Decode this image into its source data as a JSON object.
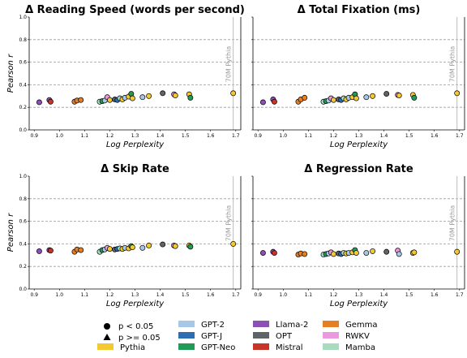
{
  "chart_data": {
    "type": "scatter",
    "xlabel": "Log Perplexity",
    "ylabel": "Pearson r",
    "xlim": [
      0.88,
      1.72
    ],
    "ylim": [
      0.0,
      1.0
    ],
    "xticks": [
      "0.9",
      "1.0",
      "1.1",
      "1.2",
      "1.3",
      "1.4",
      "1.5",
      "1.6",
      "1.7"
    ],
    "yticks": [
      "0.0",
      "0.2",
      "0.4",
      "0.6",
      "0.8",
      "1.0"
    ],
    "xtick_values": [
      0.9,
      1.0,
      1.1,
      1.2,
      1.3,
      1.4,
      1.5,
      1.6,
      1.7
    ],
    "ytick_values": [
      0.0,
      0.2,
      0.4,
      0.6,
      0.8,
      1.0
    ],
    "grid_y": true,
    "reference_line": {
      "x": 1.69,
      "label": "70M Pythia"
    },
    "legend": {
      "placement": "bottom",
      "markers": [
        {
          "shape": "circle",
          "label": "p < 0.05"
        },
        {
          "shape": "triangle",
          "label": "p >= 0.05"
        }
      ],
      "families": [
        {
          "name": "GPT-2",
          "color": "#a6c8e6"
        },
        {
          "name": "GPT-J",
          "color": "#2c6db3"
        },
        {
          "name": "GPT-Neo",
          "color": "#219b58"
        },
        {
          "name": "Llama-2",
          "color": "#8d4fb5"
        },
        {
          "name": "OPT",
          "color": "#5f6468"
        },
        {
          "name": "Mistral",
          "color": "#c63528"
        },
        {
          "name": "Gemma",
          "color": "#e67e22"
        },
        {
          "name": "RWKV",
          "color": "#ea99df"
        },
        {
          "name": "Mamba",
          "color": "#a7dcc1"
        },
        {
          "name": "Pythia",
          "color": "#f4c82f"
        }
      ]
    },
    "panels": [
      {
        "title": "Δ Reading Speed (words per second)",
        "points": [
          {
            "x": 0.92,
            "y": 0.245,
            "family": "Llama-2"
          },
          {
            "x": 0.96,
            "y": 0.265,
            "family": "Llama-2"
          },
          {
            "x": 0.965,
            "y": 0.25,
            "family": "Mistral"
          },
          {
            "x": 1.06,
            "y": 0.25,
            "family": "Gemma"
          },
          {
            "x": 1.07,
            "y": 0.26,
            "family": "Gemma"
          },
          {
            "x": 1.085,
            "y": 0.265,
            "family": "Gemma"
          },
          {
            "x": 1.16,
            "y": 0.25,
            "family": "Mamba"
          },
          {
            "x": 1.17,
            "y": 0.255,
            "family": "GPT-Neo"
          },
          {
            "x": 1.18,
            "y": 0.26,
            "family": "GPT-2"
          },
          {
            "x": 1.19,
            "y": 0.29,
            "family": "RWKV"
          },
          {
            "x": 1.2,
            "y": 0.265,
            "family": "Pythia"
          },
          {
            "x": 1.22,
            "y": 0.27,
            "family": "OPT"
          },
          {
            "x": 1.23,
            "y": 0.265,
            "family": "GPT-J"
          },
          {
            "x": 1.24,
            "y": 0.28,
            "family": "Mamba"
          },
          {
            "x": 1.25,
            "y": 0.27,
            "family": "Pythia"
          },
          {
            "x": 1.26,
            "y": 0.285,
            "family": "GPT-2"
          },
          {
            "x": 1.275,
            "y": 0.295,
            "family": "Pythia"
          },
          {
            "x": 1.285,
            "y": 0.32,
            "family": "GPT-Neo"
          },
          {
            "x": 1.29,
            "y": 0.28,
            "family": "Pythia"
          },
          {
            "x": 1.33,
            "y": 0.29,
            "family": "GPT-2"
          },
          {
            "x": 1.355,
            "y": 0.3,
            "family": "Pythia"
          },
          {
            "x": 1.41,
            "y": 0.325,
            "family": "OPT"
          },
          {
            "x": 1.455,
            "y": 0.315,
            "family": "RWKV"
          },
          {
            "x": 1.46,
            "y": 0.305,
            "family": "Pythia"
          },
          {
            "x": 1.515,
            "y": 0.315,
            "family": "Pythia"
          },
          {
            "x": 1.52,
            "y": 0.285,
            "family": "GPT-Neo"
          },
          {
            "x": 1.69,
            "y": 0.325,
            "family": "Pythia"
          }
        ]
      },
      {
        "title": "Δ Total Fixation (ms)",
        "points": [
          {
            "x": 0.92,
            "y": 0.245,
            "family": "Llama-2"
          },
          {
            "x": 0.96,
            "y": 0.27,
            "family": "Llama-2"
          },
          {
            "x": 0.965,
            "y": 0.25,
            "family": "Mistral"
          },
          {
            "x": 1.06,
            "y": 0.25,
            "family": "Gemma"
          },
          {
            "x": 1.07,
            "y": 0.27,
            "family": "Gemma"
          },
          {
            "x": 1.085,
            "y": 0.285,
            "family": "Gemma"
          },
          {
            "x": 1.16,
            "y": 0.25,
            "family": "Mamba"
          },
          {
            "x": 1.17,
            "y": 0.255,
            "family": "GPT-Neo"
          },
          {
            "x": 1.18,
            "y": 0.26,
            "family": "GPT-2"
          },
          {
            "x": 1.19,
            "y": 0.28,
            "family": "RWKV"
          },
          {
            "x": 1.2,
            "y": 0.265,
            "family": "Pythia"
          },
          {
            "x": 1.22,
            "y": 0.27,
            "family": "OPT"
          },
          {
            "x": 1.23,
            "y": 0.265,
            "family": "GPT-J"
          },
          {
            "x": 1.24,
            "y": 0.28,
            "family": "Mamba"
          },
          {
            "x": 1.25,
            "y": 0.27,
            "family": "Pythia"
          },
          {
            "x": 1.26,
            "y": 0.285,
            "family": "GPT-2"
          },
          {
            "x": 1.275,
            "y": 0.29,
            "family": "Pythia"
          },
          {
            "x": 1.285,
            "y": 0.315,
            "family": "GPT-Neo"
          },
          {
            "x": 1.29,
            "y": 0.28,
            "family": "Pythia"
          },
          {
            "x": 1.33,
            "y": 0.29,
            "family": "GPT-2"
          },
          {
            "x": 1.355,
            "y": 0.3,
            "family": "Pythia"
          },
          {
            "x": 1.41,
            "y": 0.32,
            "family": "OPT"
          },
          {
            "x": 1.455,
            "y": 0.31,
            "family": "RWKV"
          },
          {
            "x": 1.46,
            "y": 0.305,
            "family": "Pythia"
          },
          {
            "x": 1.515,
            "y": 0.31,
            "family": "Pythia"
          },
          {
            "x": 1.52,
            "y": 0.285,
            "family": "GPT-Neo"
          },
          {
            "x": 1.69,
            "y": 0.325,
            "family": "Pythia"
          }
        ]
      },
      {
        "title": "Δ Skip Rate",
        "points": [
          {
            "x": 0.92,
            "y": 0.335,
            "family": "Llama-2"
          },
          {
            "x": 0.96,
            "y": 0.345,
            "family": "Llama-2"
          },
          {
            "x": 0.965,
            "y": 0.34,
            "family": "Mistral"
          },
          {
            "x": 1.06,
            "y": 0.33,
            "family": "Gemma"
          },
          {
            "x": 1.07,
            "y": 0.35,
            "family": "Gemma"
          },
          {
            "x": 1.085,
            "y": 0.345,
            "family": "Gemma"
          },
          {
            "x": 1.16,
            "y": 0.33,
            "family": "Mamba"
          },
          {
            "x": 1.17,
            "y": 0.345,
            "family": "GPT-Neo"
          },
          {
            "x": 1.18,
            "y": 0.35,
            "family": "GPT-2"
          },
          {
            "x": 1.19,
            "y": 0.365,
            "family": "RWKV"
          },
          {
            "x": 1.2,
            "y": 0.355,
            "family": "Pythia"
          },
          {
            "x": 1.22,
            "y": 0.35,
            "family": "OPT"
          },
          {
            "x": 1.23,
            "y": 0.355,
            "family": "GPT-J"
          },
          {
            "x": 1.24,
            "y": 0.36,
            "family": "Mamba"
          },
          {
            "x": 1.25,
            "y": 0.355,
            "family": "Pythia"
          },
          {
            "x": 1.26,
            "y": 0.365,
            "family": "GPT-2"
          },
          {
            "x": 1.275,
            "y": 0.36,
            "family": "Pythia"
          },
          {
            "x": 1.285,
            "y": 0.38,
            "family": "GPT-Neo"
          },
          {
            "x": 1.29,
            "y": 0.37,
            "family": "Pythia"
          },
          {
            "x": 1.33,
            "y": 0.365,
            "family": "GPT-2"
          },
          {
            "x": 1.355,
            "y": 0.385,
            "family": "Pythia"
          },
          {
            "x": 1.41,
            "y": 0.395,
            "family": "OPT"
          },
          {
            "x": 1.455,
            "y": 0.385,
            "family": "RWKV"
          },
          {
            "x": 1.46,
            "y": 0.38,
            "family": "Pythia"
          },
          {
            "x": 1.515,
            "y": 0.385,
            "family": "Pythia"
          },
          {
            "x": 1.52,
            "y": 0.375,
            "family": "GPT-Neo"
          },
          {
            "x": 1.69,
            "y": 0.4,
            "family": "Pythia"
          }
        ]
      },
      {
        "title": "Δ Regression Rate",
        "points": [
          {
            "x": 0.92,
            "y": 0.32,
            "family": "Llama-2"
          },
          {
            "x": 0.96,
            "y": 0.33,
            "family": "Llama-2"
          },
          {
            "x": 0.965,
            "y": 0.32,
            "family": "Mistral"
          },
          {
            "x": 1.06,
            "y": 0.305,
            "family": "Gemma"
          },
          {
            "x": 1.07,
            "y": 0.315,
            "family": "Gemma"
          },
          {
            "x": 1.085,
            "y": 0.31,
            "family": "Gemma"
          },
          {
            "x": 1.16,
            "y": 0.305,
            "family": "Mamba"
          },
          {
            "x": 1.17,
            "y": 0.31,
            "family": "GPT-Neo"
          },
          {
            "x": 1.18,
            "y": 0.315,
            "family": "GPT-2"
          },
          {
            "x": 1.19,
            "y": 0.325,
            "family": "RWKV"
          },
          {
            "x": 1.2,
            "y": 0.31,
            "family": "Pythia"
          },
          {
            "x": 1.22,
            "y": 0.315,
            "family": "OPT"
          },
          {
            "x": 1.23,
            "y": 0.31,
            "family": "GPT-J"
          },
          {
            "x": 1.24,
            "y": 0.32,
            "family": "Mamba"
          },
          {
            "x": 1.25,
            "y": 0.315,
            "family": "Pythia"
          },
          {
            "x": 1.26,
            "y": 0.32,
            "family": "GPT-2"
          },
          {
            "x": 1.275,
            "y": 0.325,
            "family": "Pythia"
          },
          {
            "x": 1.285,
            "y": 0.345,
            "family": "GPT-Neo"
          },
          {
            "x": 1.29,
            "y": 0.32,
            "family": "Pythia"
          },
          {
            "x": 1.33,
            "y": 0.32,
            "family": "GPT-2"
          },
          {
            "x": 1.355,
            "y": 0.335,
            "family": "Pythia"
          },
          {
            "x": 1.41,
            "y": 0.33,
            "family": "OPT"
          },
          {
            "x": 1.455,
            "y": 0.34,
            "family": "RWKV"
          },
          {
            "x": 1.46,
            "y": 0.31,
            "family": "GPT-2"
          },
          {
            "x": 1.515,
            "y": 0.32,
            "family": "Pythia"
          },
          {
            "x": 1.52,
            "y": 0.325,
            "family": "Pythia"
          },
          {
            "x": 1.69,
            "y": 0.33,
            "family": "Pythia"
          }
        ]
      }
    ]
  }
}
